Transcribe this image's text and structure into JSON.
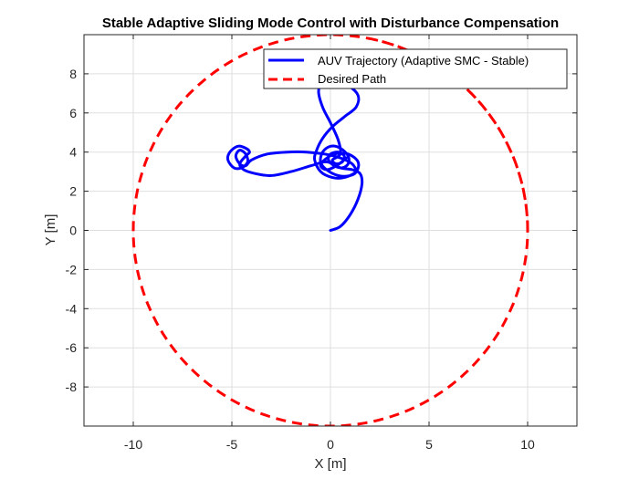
{
  "chart_data": {
    "type": "line",
    "title": "Stable Adaptive Sliding Mode Control with Disturbance Compensation",
    "xlabel": "X [m]",
    "ylabel": "Y [m]",
    "xlim": [
      -12.5,
      12.5
    ],
    "ylim": [
      -10,
      10
    ],
    "xticks": [
      -10,
      -5,
      0,
      5,
      10
    ],
    "yticks": [
      -8,
      -6,
      -4,
      -2,
      0,
      2,
      4,
      6,
      8
    ],
    "grid": true,
    "legend_position": "top-right",
    "series": [
      {
        "name": "AUV Trajectory (Adaptive SMC - Stable)",
        "color": "#0000ff",
        "style": "solid",
        "x": [
          0,
          0.5,
          1.0,
          1.4,
          1.6,
          1.5,
          1.1,
          0.5,
          -0.2,
          -1.0,
          -2.0,
          -3.0,
          -3.8,
          -4.4,
          -4.6,
          -4.3,
          -4.1,
          -4.3,
          -4.7,
          -5.1,
          -5.2,
          -4.9,
          -4.5,
          -4.2,
          -4.3,
          -4.6,
          -4.8,
          -4.6,
          -4.3,
          -4.0,
          -3.2,
          -2.2,
          -1.2,
          -0.3,
          0.5,
          1.1,
          1.3,
          1.0,
          0.4,
          -0.2,
          -0.5,
          -0.4,
          0.0,
          0.5,
          0.9,
          0.9,
          0.6,
          0.2,
          -0.1,
          0.0,
          0.4,
          0.7,
          0.6,
          0.3,
          0.1,
          0.5,
          0.4,
          0.0,
          -0.4,
          -0.6,
          -0.4,
          0.2,
          0.9,
          1.4,
          1.3,
          0.7,
          0.1,
          -0.4,
          -0.7,
          -0.8,
          -0.5,
          0.1,
          0.7,
          1.3,
          1.4,
          0.9,
          0.2,
          -0.3,
          -0.5,
          -0.2,
          0.3,
          0.8
        ],
        "y": [
          0,
          0.2,
          0.8,
          1.6,
          2.4,
          2.9,
          3.1,
          3.2,
          3.5,
          3.3,
          3.0,
          2.8,
          2.9,
          3.1,
          3.4,
          3.8,
          4.0,
          4.2,
          4.3,
          4.0,
          3.6,
          3.2,
          3.2,
          3.5,
          3.9,
          4.1,
          3.8,
          3.4,
          3.3,
          3.6,
          3.9,
          4.0,
          4.0,
          3.9,
          3.7,
          3.4,
          3.0,
          2.8,
          2.8,
          3.1,
          3.5,
          4.0,
          4.3,
          4.2,
          3.8,
          3.4,
          3.2,
          3.3,
          3.6,
          3.9,
          4.0,
          3.8,
          3.5,
          3.4,
          3.6,
          3.9,
          4.6,
          5.5,
          6.3,
          7.1,
          7.6,
          7.7,
          7.4,
          6.9,
          6.3,
          5.8,
          5.3,
          4.7,
          4.1,
          3.6,
          3.0,
          2.7,
          2.7,
          3.0,
          3.5,
          3.9,
          3.9,
          3.6,
          3.3,
          3.1,
          3.3,
          3.7
        ]
      },
      {
        "name": "Desired Path",
        "color": "#ff0000",
        "style": "dashed",
        "parametric": "circle",
        "center": [
          0,
          0
        ],
        "radius": 10,
        "theta_range_deg": [
          0,
          440
        ]
      }
    ]
  }
}
